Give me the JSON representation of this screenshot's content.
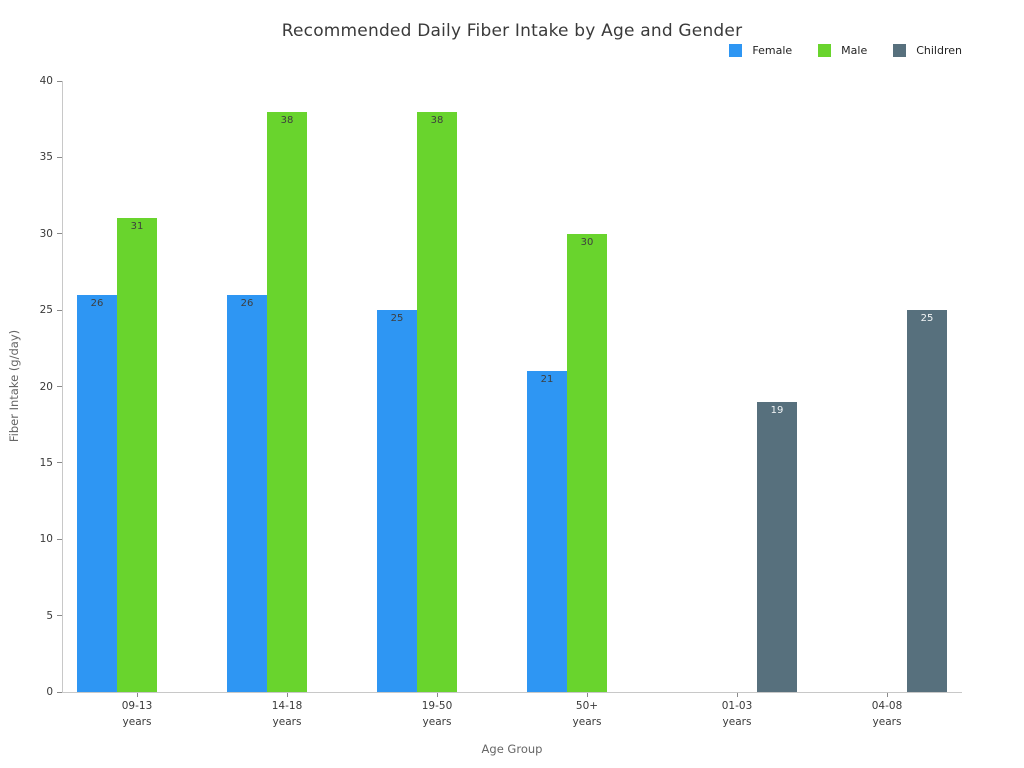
{
  "chart_data": {
    "type": "bar",
    "title": "Recommended Daily Fiber Intake by Age and Gender",
    "xlabel": "Age Group",
    "ylabel": "Fiber Intake (g/day)",
    "categories": [
      "09-13",
      "14-18",
      "19-50",
      "50+",
      "01-03",
      "04-08"
    ],
    "category_suffix": "years",
    "series": [
      {
        "name": "Female",
        "color": "#2E96F3",
        "value_label_color": "#3e3e3e",
        "values": [
          26,
          26,
          25,
          21,
          null,
          null
        ]
      },
      {
        "name": "Male",
        "color": "#69D42D",
        "value_label_color": "#3e3e3e",
        "values": [
          31,
          38,
          38,
          30,
          null,
          null
        ]
      },
      {
        "name": "Children",
        "color": "#57707D",
        "value_label_color": "#f2f5f6",
        "values": [
          null,
          null,
          null,
          null,
          19,
          25
        ]
      }
    ],
    "ylim": [
      0,
      40
    ],
    "yticks": [
      0,
      5,
      10,
      15,
      20,
      25,
      30,
      35,
      40
    ],
    "grid": false,
    "legend_position": "top-right",
    "value_labels": "inside-top"
  }
}
